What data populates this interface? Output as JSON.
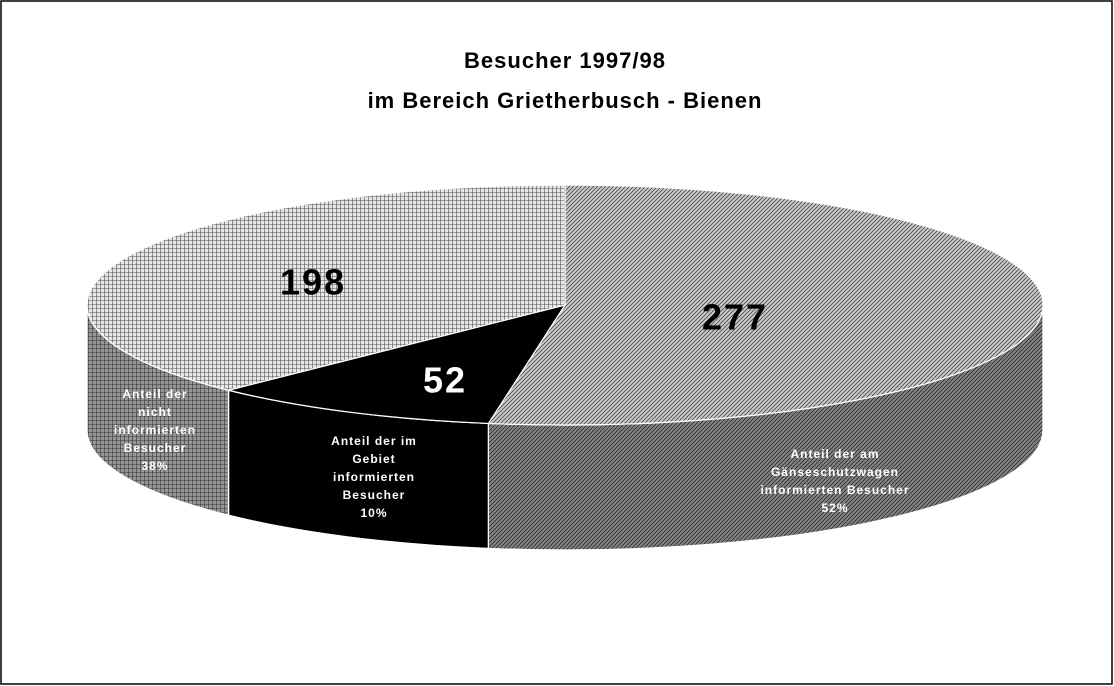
{
  "chart_data": {
    "type": "pie",
    "title": "Besucher 1997/98",
    "subtitle": "im Bereich Grietherbusch - Bienen",
    "categories": [
      "Anteil der am\nGänseschutzwagen\ninformierten Besucher",
      "Anteil der im\nGebiet\ninformierten\nBesucher",
      "Anteil der\nnicht\ninformierten\nBesucher"
    ],
    "values": [
      277,
      52,
      198
    ],
    "percent_labels": [
      "52%",
      "10%",
      "38%"
    ],
    "colors": [
      "#c8c8c8",
      "#000000",
      "#e6e6e6"
    ],
    "patterns": [
      "diagonal",
      "solid",
      "crosshatch"
    ],
    "three_d": true
  }
}
